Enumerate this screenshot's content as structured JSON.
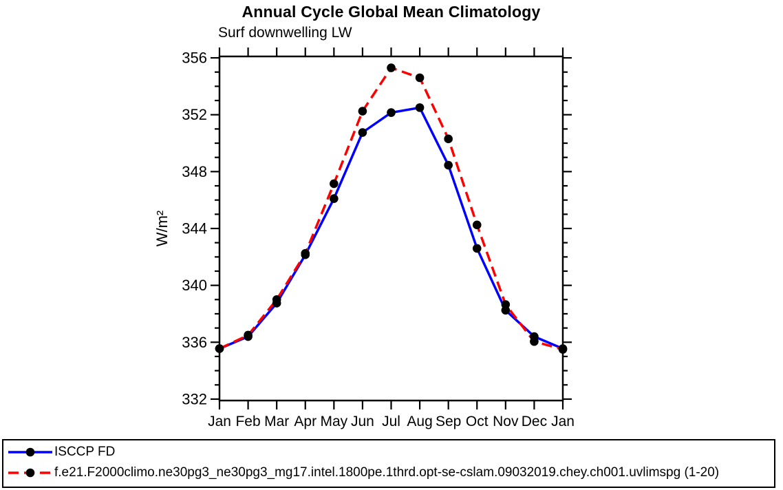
{
  "chart_data": {
    "type": "line",
    "title": "Annual Cycle Global Mean Climatology",
    "subtitle": "Surf downwelling LW",
    "ylabel": "W/m²",
    "xlabel": "",
    "categories": [
      "Jan",
      "Feb",
      "Mar",
      "Apr",
      "May",
      "Jun",
      "Jul",
      "Aug",
      "Sep",
      "Oct",
      "Nov",
      "Dec",
      "Jan"
    ],
    "ylim": [
      331.9,
      356.1
    ],
    "yticks_major": [
      332,
      336,
      340,
      344,
      348,
      352,
      356
    ],
    "ytick_minor_step": 1,
    "grid": false,
    "legend_position": "bottom-box",
    "series": [
      {
        "name": "ISCCP FD",
        "color": "#0000ff",
        "line_style": "solid",
        "marker": "circle",
        "marker_color": "#000000",
        "values": [
          335.55,
          336.4,
          338.75,
          342.15,
          346.1,
          350.75,
          352.15,
          352.5,
          348.45,
          342.6,
          338.25,
          336.4,
          335.55
        ]
      },
      {
        "name": "f.e21.F2000climo.ne30pg3_ne30pg3_mg17.intel.1800pe.1thrd.opt-se-cslam.09032019.chey.ch001.uvlimspg (1-20)",
        "color": "#ff0000",
        "line_style": "dashed",
        "marker": "circle",
        "marker_color": "#000000",
        "values": [
          335.55,
          336.5,
          339.0,
          342.25,
          347.15,
          352.25,
          355.3,
          354.6,
          350.3,
          344.25,
          338.65,
          336.05,
          335.5
        ]
      }
    ],
    "axis_color": "#000000",
    "background_color": "#ffffff"
  }
}
